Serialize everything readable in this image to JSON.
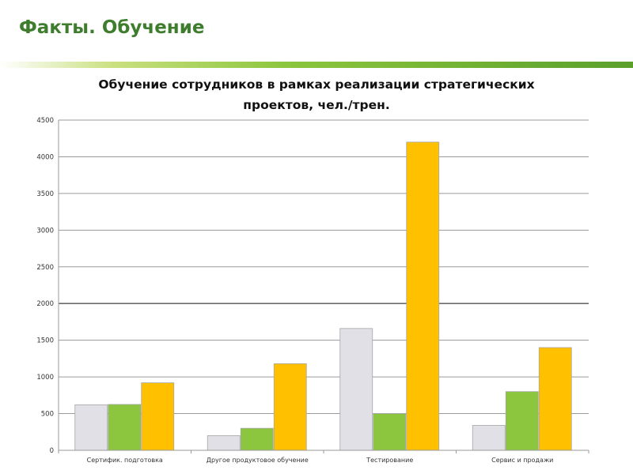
{
  "slide": {
    "title": "Факты. Обучение"
  },
  "chart_data": {
    "type": "bar",
    "title_lines": [
      "Обучение сотрудников в рамках реализации стратегических",
      "проектов, чел./трен."
    ],
    "categories": [
      "Сертифик. подготовка",
      "Другое продуктовое обучение",
      "Тестирование",
      "Сервис и продажи"
    ],
    "series": [
      {
        "values": [
          620,
          200,
          1660,
          340
        ],
        "color": "#e0e0e6"
      },
      {
        "values": [
          625,
          300,
          500,
          800
        ],
        "color": "#8cc63e"
      },
      {
        "values": [
          920,
          1180,
          4200,
          1400
        ],
        "color": "#ffc000"
      }
    ],
    "ylim": [
      0,
      4500
    ],
    "yticks": [
      "0",
      "500",
      "1000",
      "1500",
      "2000",
      "2500",
      "3000",
      "3500",
      "4000",
      "4500"
    ],
    "grid": true,
    "legend": "none"
  }
}
